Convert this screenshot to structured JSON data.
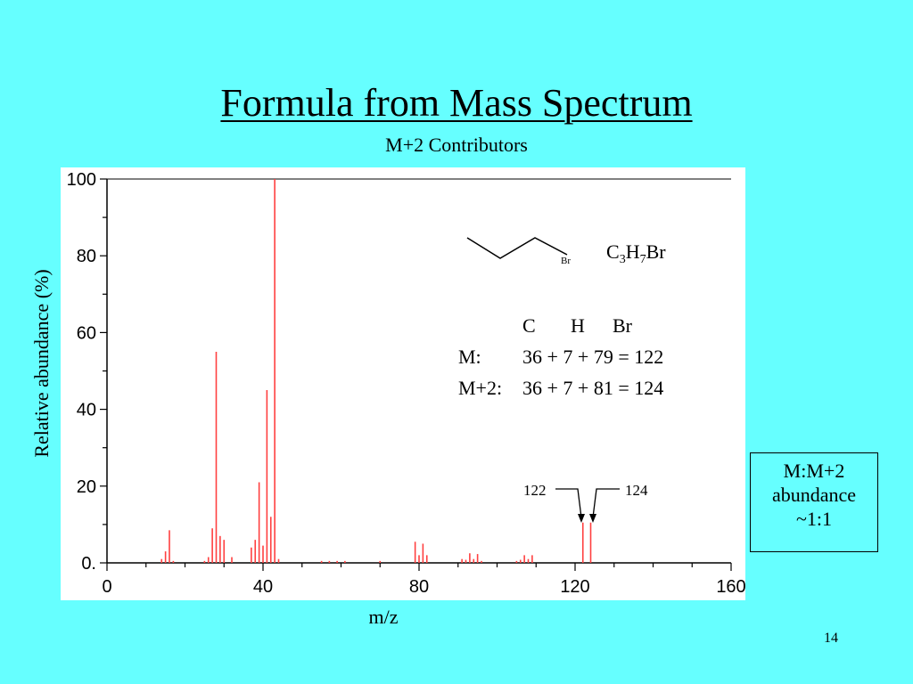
{
  "slide": {
    "title": "Formula from Mass Spectrum",
    "subtitle": "M+2 Contributors",
    "page_number": "14",
    "background": "#66FFFF"
  },
  "molecule": {
    "atom_label": "Br",
    "formula_parts": [
      "C",
      "3",
      "H",
      "7",
      "Br"
    ]
  },
  "calc": {
    "header": [
      "C",
      "H",
      "Br"
    ],
    "rows": [
      {
        "label": "M:",
        "expr": "36 + 7 + 79 = 122"
      },
      {
        "label": "M+2:",
        "expr": "36 + 7 + 81 = 124"
      }
    ]
  },
  "callouts": {
    "left": "122",
    "right": "124"
  },
  "ratio_box": [
    "M:M+2",
    "abundance",
    "~1:1"
  ],
  "chart_data": {
    "type": "bar",
    "xlabel": "m/z",
    "ylabel": "Relative abundance (%)",
    "xlim": [
      0,
      160
    ],
    "ylim": [
      0,
      100
    ],
    "xticks": [
      "0",
      "40",
      "80",
      "120",
      "160"
    ],
    "yticks": [
      "0.",
      "20",
      "40",
      "60",
      "80",
      "100"
    ],
    "bar_color": "#FF4040",
    "peaks": [
      {
        "x": 14,
        "y": 1
      },
      {
        "x": 15,
        "y": 3
      },
      {
        "x": 16,
        "y": 8.5
      },
      {
        "x": 17,
        "y": 0.5
      },
      {
        "x": 25,
        "y": 0.5
      },
      {
        "x": 26,
        "y": 1.5
      },
      {
        "x": 27,
        "y": 9
      },
      {
        "x": 28,
        "y": 55
      },
      {
        "x": 29,
        "y": 7
      },
      {
        "x": 30,
        "y": 6
      },
      {
        "x": 32,
        "y": 1.5
      },
      {
        "x": 37,
        "y": 4
      },
      {
        "x": 38,
        "y": 6
      },
      {
        "x": 39,
        "y": 21
      },
      {
        "x": 40,
        "y": 4.5
      },
      {
        "x": 41,
        "y": 45
      },
      {
        "x": 42,
        "y": 12
      },
      {
        "x": 43,
        "y": 100
      },
      {
        "x": 44,
        "y": 1
      },
      {
        "x": 55,
        "y": 0.5
      },
      {
        "x": 57,
        "y": 0.5
      },
      {
        "x": 59,
        "y": 0.5
      },
      {
        "x": 61,
        "y": 0.5
      },
      {
        "x": 70,
        "y": 0.5
      },
      {
        "x": 79,
        "y": 5.5
      },
      {
        "x": 80,
        "y": 2
      },
      {
        "x": 81,
        "y": 5
      },
      {
        "x": 82,
        "y": 2
      },
      {
        "x": 91,
        "y": 1
      },
      {
        "x": 92,
        "y": 0.8
      },
      {
        "x": 93,
        "y": 2.5
      },
      {
        "x": 94,
        "y": 1
      },
      {
        "x": 95,
        "y": 2.3
      },
      {
        "x": 96,
        "y": 0.5
      },
      {
        "x": 105,
        "y": 0.5
      },
      {
        "x": 106,
        "y": 0.8
      },
      {
        "x": 107,
        "y": 2
      },
      {
        "x": 108,
        "y": 1
      },
      {
        "x": 109,
        "y": 2
      },
      {
        "x": 122,
        "y": 10.5
      },
      {
        "x": 124,
        "y": 10.5
      }
    ]
  }
}
